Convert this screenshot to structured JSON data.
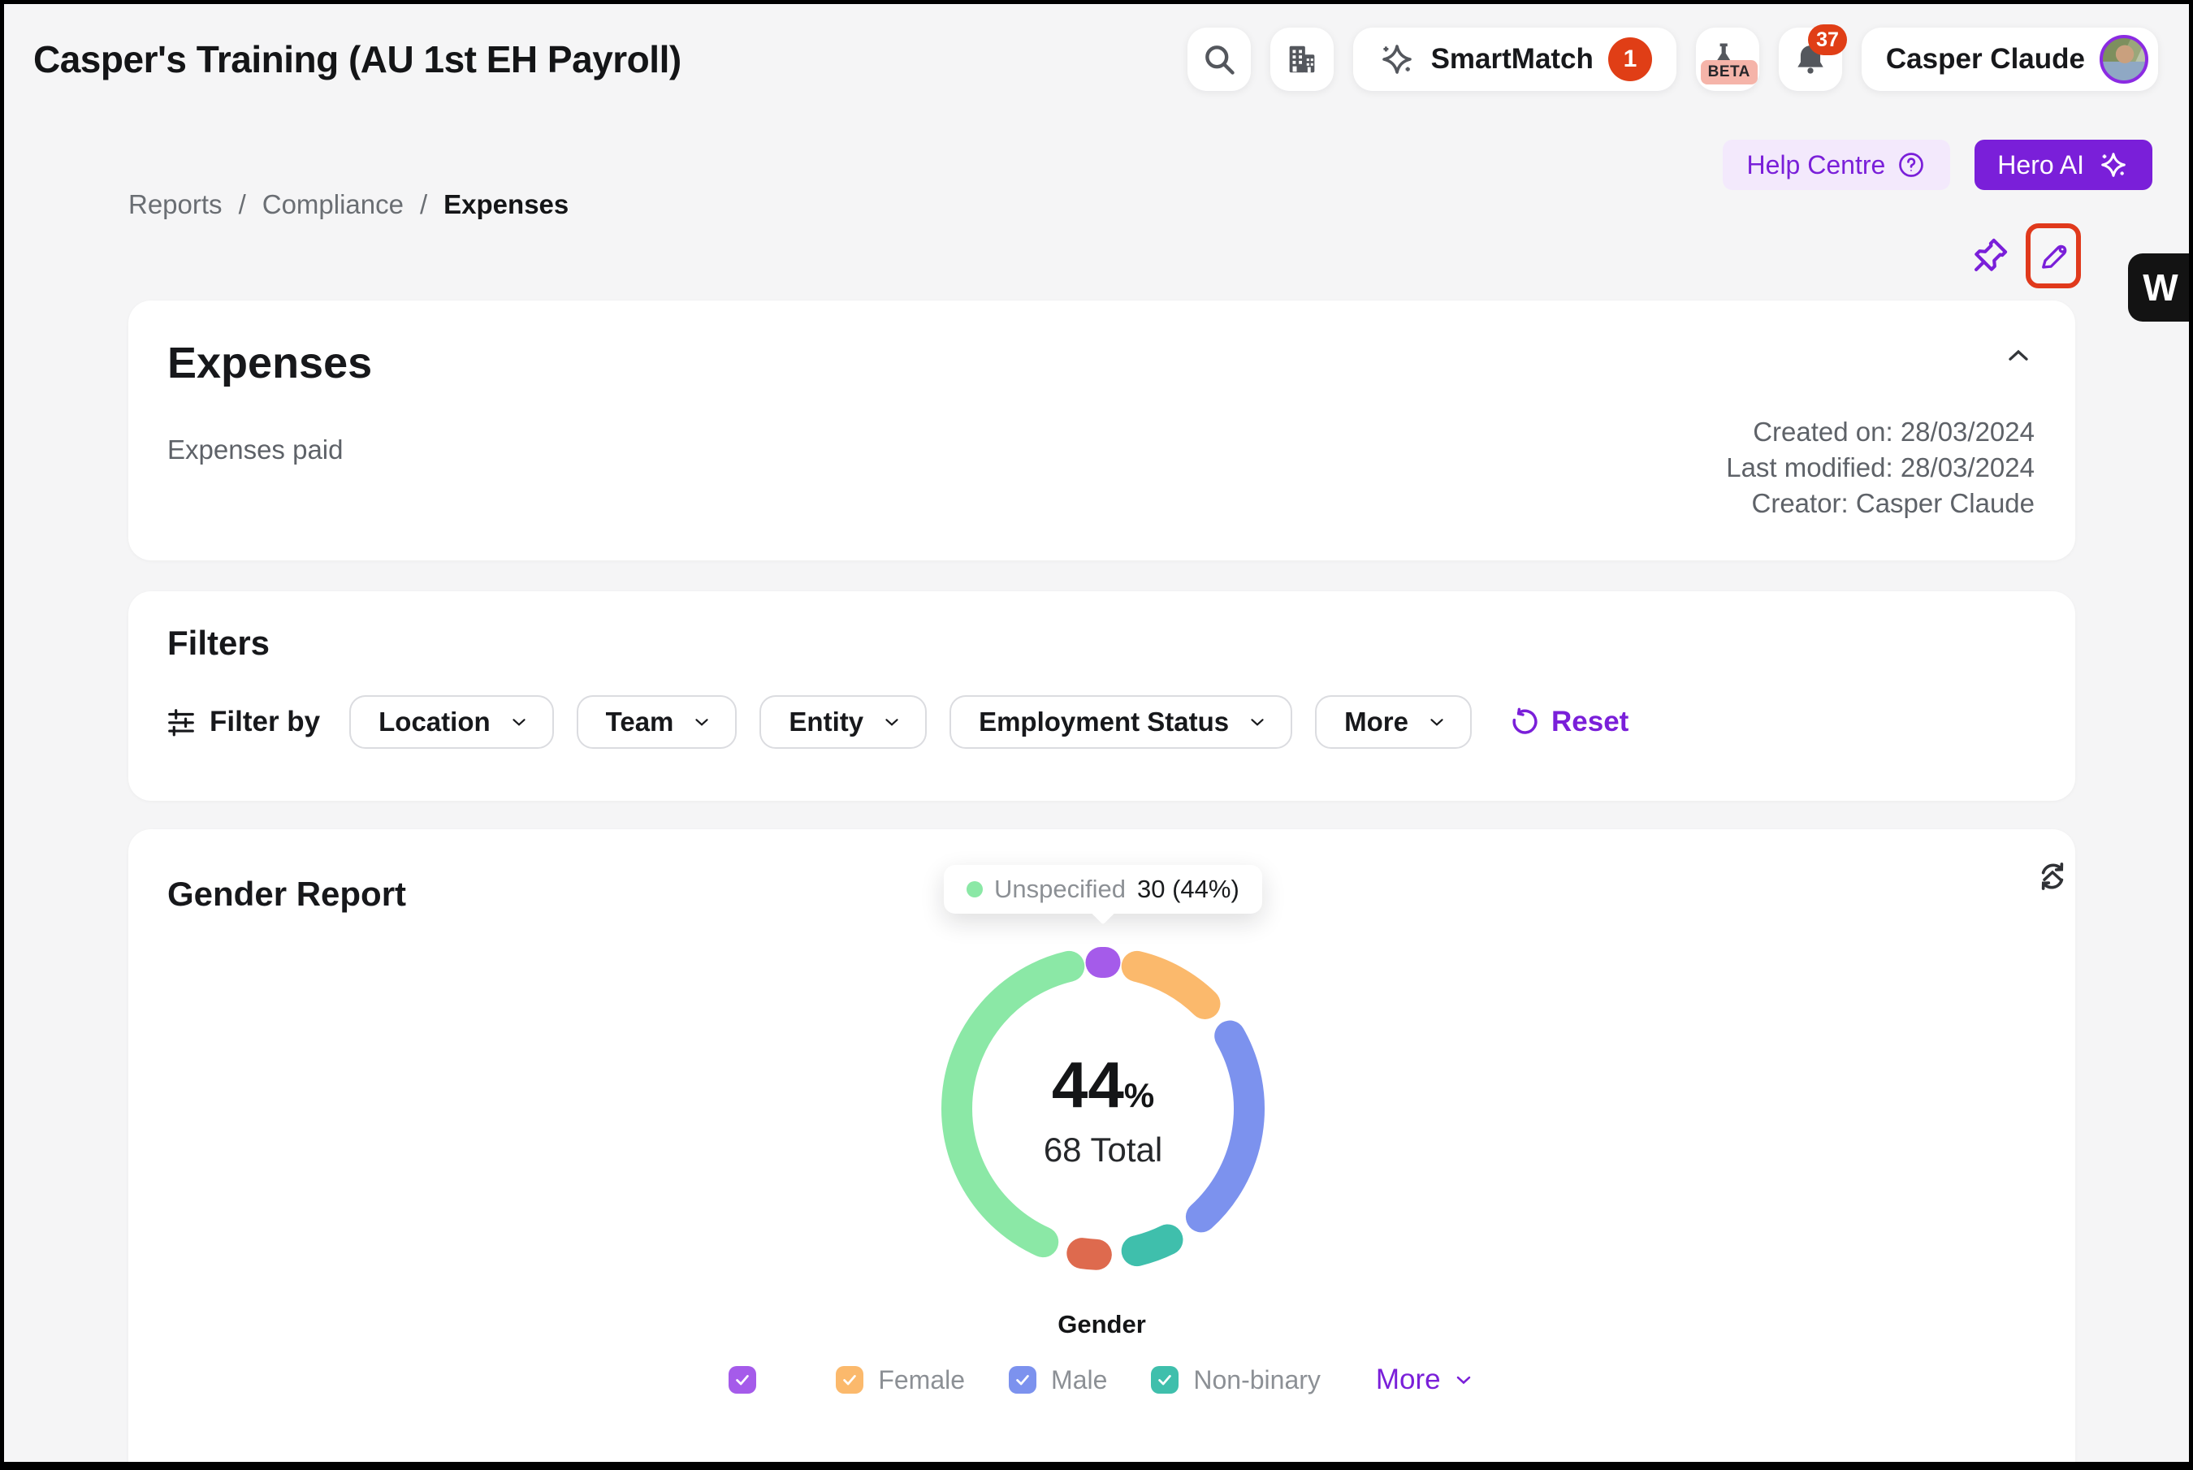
{
  "window": {
    "title": "Casper's Training (AU 1st EH Payroll)"
  },
  "topbar": {
    "smartmatch": {
      "label": "SmartMatch",
      "badge": "1"
    },
    "beta_tag": "BETA",
    "notifications_badge": "37",
    "profile": {
      "name": "Casper Claude"
    }
  },
  "actions": {
    "help_centre_label": "Help Centre",
    "hero_ai_label": "Hero AI"
  },
  "breadcrumb": {
    "items": [
      {
        "label": "Reports"
      },
      {
        "label": "Compliance"
      },
      {
        "label": "Expenses"
      }
    ],
    "separator": "/"
  },
  "widget_tab": {
    "label": "W"
  },
  "expenses_card": {
    "title": "Expenses",
    "description": "Expenses paid",
    "meta": [
      "Created on: 28/03/2024",
      "Last modified: 28/03/2024",
      "Creator: Casper Claude"
    ]
  },
  "filters_card": {
    "title": "Filters",
    "filter_by_label": "Filter by",
    "dropdowns": [
      {
        "label": "Location"
      },
      {
        "label": "Team"
      },
      {
        "label": "Entity"
      },
      {
        "label": "Employment Status"
      },
      {
        "label": "More"
      }
    ],
    "reset_label": "Reset"
  },
  "gender_card": {
    "title": "Gender Report",
    "tooltip": {
      "label": "Unspecified",
      "value": "30 (44%)",
      "dot_color": "#8BE8A6"
    },
    "center": {
      "percent": "44",
      "percent_sign": "%",
      "total": "68 Total"
    },
    "axis_label": "Gender",
    "legend": [
      {
        "label": "",
        "color": "#A55BEA",
        "checked": true
      },
      {
        "label": "Female",
        "color": "#FBB96C",
        "checked": true
      },
      {
        "label": "Male",
        "color": "#7C92EE",
        "checked": true
      },
      {
        "label": "Non-binary",
        "color": "#3FBFAC",
        "checked": true
      }
    ],
    "more_label": "More"
  },
  "chart_data": {
    "type": "pie",
    "title": "Gender Report",
    "xlabel": "Gender",
    "total": 68,
    "center_text": {
      "percent": 44,
      "total_label": "68 Total"
    },
    "tooltip_shown": {
      "label": "Unspecified",
      "value": 30,
      "pct": 44
    },
    "legend_position": "bottom",
    "segments": [
      {
        "label": "",
        "value": 2,
        "pct": 3,
        "color": "#A55BEA"
      },
      {
        "label": "Female",
        "value": 9,
        "pct": 13,
        "color": "#FBB96C"
      },
      {
        "label": "Male",
        "value": 18,
        "pct": 26,
        "color": "#7C92EE"
      },
      {
        "label": "Non-binary",
        "value": 5,
        "pct": 8,
        "color": "#3FBFAC"
      },
      {
        "label": "",
        "value": 4,
        "pct": 6,
        "color": "#DE6A4E"
      },
      {
        "label": "Unspecified",
        "value": 30,
        "pct": 44,
        "color": "#8BE8A6"
      }
    ]
  },
  "colors": {
    "brand_purple": "#7A1FD9",
    "badge_red": "#E03E16",
    "annotation_red": "#E0391C",
    "background": "#F5F5F6"
  }
}
